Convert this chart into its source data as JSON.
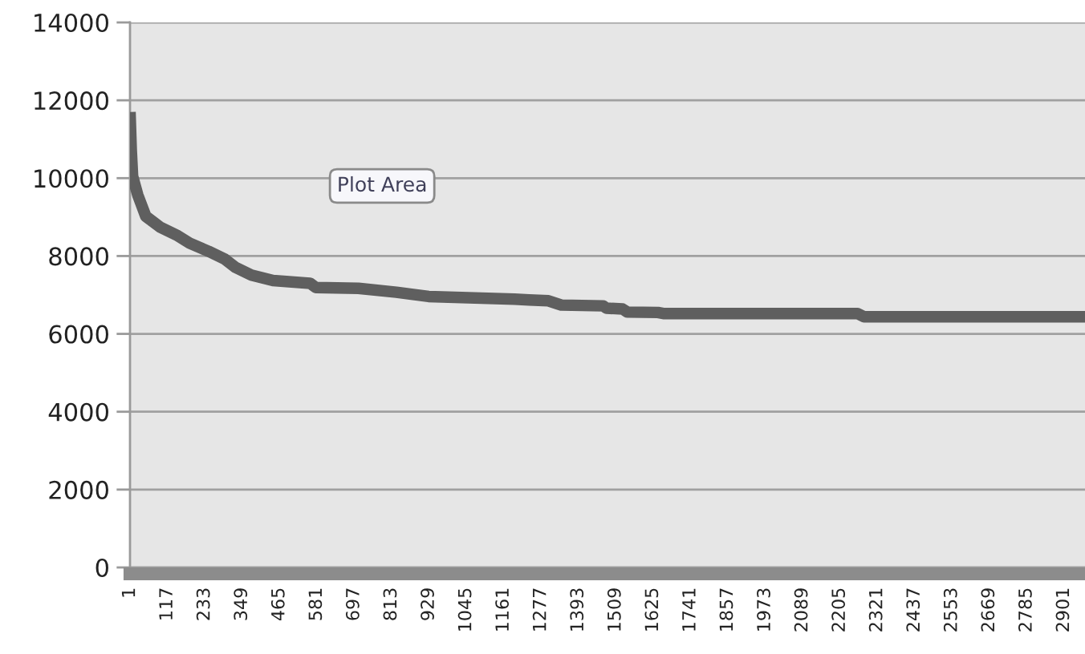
{
  "chart_data": {
    "type": "line",
    "color": "#5f5f5f",
    "line_style": "solid",
    "grid": "y",
    "x": [
      1,
      5,
      9,
      25,
      50,
      95,
      145,
      186,
      245,
      295,
      328,
      378,
      445,
      560,
      578,
      710,
      828,
      928,
      1195,
      1240,
      1300,
      1340,
      1470,
      1480,
      1530,
      1545,
      1640,
      1660,
      2260,
      2280,
      2966
    ],
    "values": [
      11700,
      10700,
      10050,
      9570,
      9020,
      8740,
      8540,
      8330,
      8120,
      7920,
      7710,
      7510,
      7370,
      7300,
      7190,
      7170,
      7070,
      6960,
      6890,
      6870,
      6850,
      6740,
      6720,
      6660,
      6640,
      6560,
      6550,
      6520,
      6520,
      6440,
      6440
    ],
    "xlim": [
      1,
      2966
    ],
    "xticks": [
      1,
      117,
      233,
      349,
      465,
      581,
      697,
      813,
      929,
      1045,
      1161,
      1277,
      1393,
      1509,
      1625,
      1741,
      1857,
      1973,
      2089,
      2205,
      2321,
      2437,
      2553,
      2669,
      2785,
      2901
    ],
    "ylim": [
      0,
      14000
    ],
    "yticks": [
      0,
      2000,
      4000,
      6000,
      8000,
      10000,
      12000,
      14000
    ],
    "annotations": [
      "Plot Area"
    ]
  }
}
